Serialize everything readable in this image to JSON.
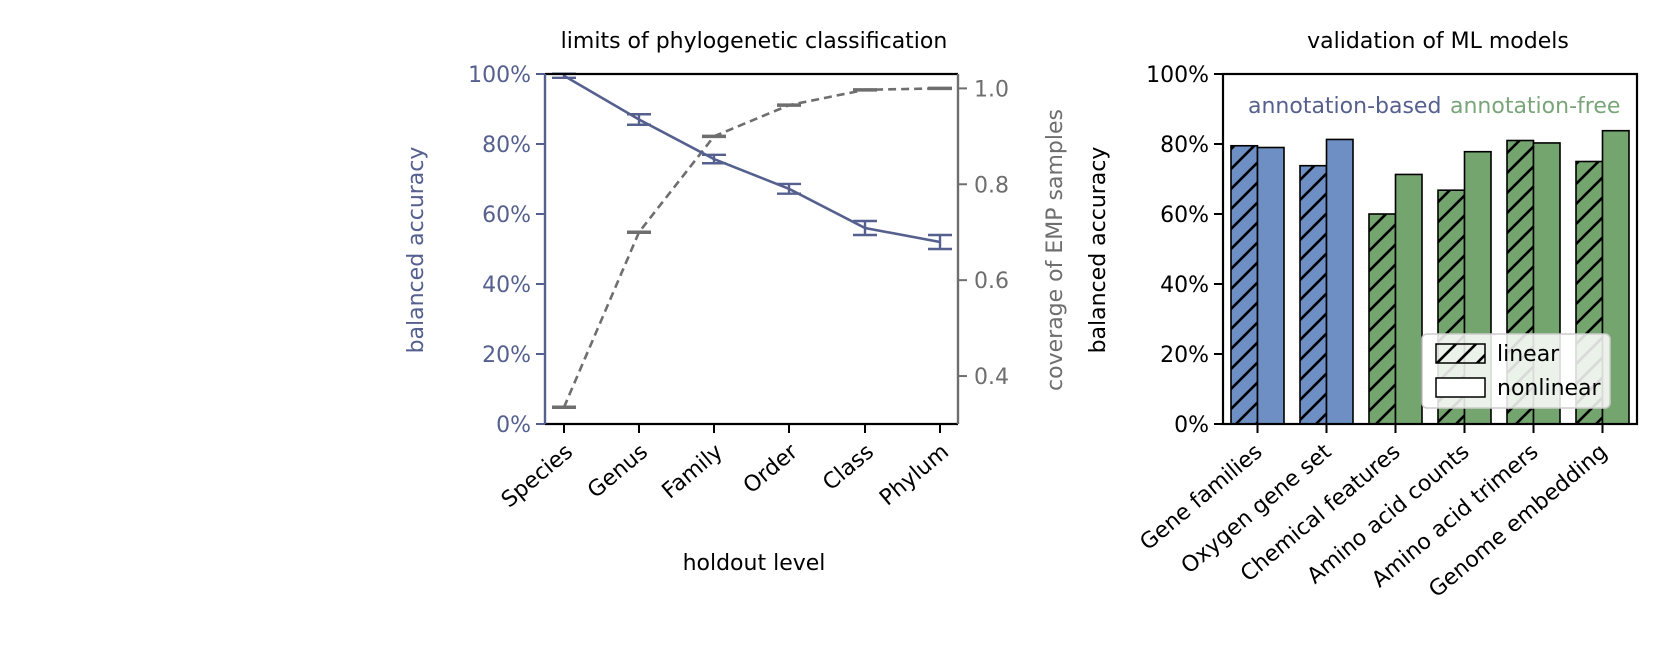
{
  "chart_data": [
    {
      "type": "line",
      "title": "limits of phylogenetic classification",
      "xlabel": "holdout level",
      "ylabel": "balanced accuracy",
      "ylabel_right": "coverage of EMP samples",
      "categories": [
        "Species",
        "Genus",
        "Family",
        "Order",
        "Class",
        "Phylum"
      ],
      "ylim": [
        0,
        100
      ],
      "yticks": [
        "0%",
        "20%",
        "40%",
        "60%",
        "80%",
        "100%"
      ],
      "ylim_right": [
        0.3,
        1.03
      ],
      "yticks_right": [
        "0.4",
        "0.6",
        "0.8",
        "1.0"
      ],
      "grid": false,
      "colors": {
        "left": "#55608f",
        "right": "#6e6e6e"
      },
      "series": [
        {
          "axis": "left",
          "style": "solid",
          "values": [
            99.5,
            87.0,
            75.7,
            67.2,
            56.0,
            52.0
          ],
          "errors": [
            0.6,
            1.5,
            1.2,
            1.4,
            2.0,
            2.0
          ]
        },
        {
          "axis": "right",
          "style": "dashed",
          "values": [
            0.335,
            0.7,
            0.9,
            0.965,
            0.997,
            1.0
          ]
        }
      ]
    },
    {
      "type": "bar",
      "title": "validation of ML models",
      "ylabel": "balanced accuracy",
      "categories": [
        "Gene families",
        "Oxygen gene set",
        "Chemical features",
        "Amino acid counts",
        "Amino acid trimers",
        "Genome embedding"
      ],
      "ylim": [
        0,
        100
      ],
      "yticks": [
        "0%",
        "20%",
        "40%",
        "60%",
        "80%",
        "100%"
      ],
      "grid": false,
      "group_labels": [
        "annotation-based",
        "annotation-free"
      ],
      "group_colors": [
        "#6e8fc4",
        "#74a56f"
      ],
      "group_label_colors": [
        "#55608f",
        "#7aa57a"
      ],
      "category_group": [
        0,
        0,
        1,
        1,
        1,
        1
      ],
      "legend": {
        "position": "lower-right",
        "entries": [
          "linear",
          "nonlinear"
        ]
      },
      "series": [
        {
          "name": "linear",
          "hatch": true,
          "values": [
            79.5,
            73.8,
            60.0,
            66.8,
            81.0,
            75.0
          ]
        },
        {
          "name": "nonlinear",
          "hatch": false,
          "values": [
            79.0,
            81.3,
            71.3,
            77.8,
            80.3,
            83.8
          ]
        }
      ]
    }
  ]
}
